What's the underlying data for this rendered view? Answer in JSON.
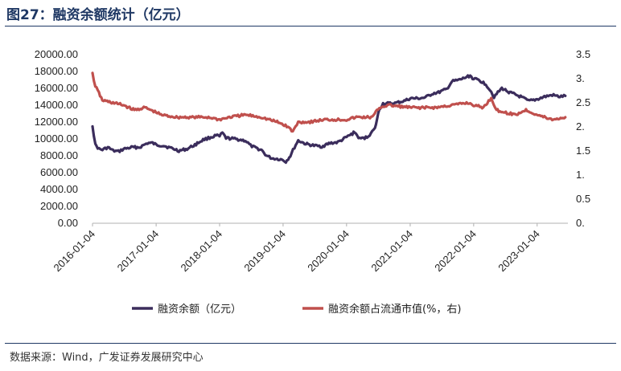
{
  "figure": {
    "title": "图27：融资余额统计（亿元）",
    "source": "数据来源：Wind，广发证券发展研究中心"
  },
  "chart_data": {
    "type": "line",
    "x_ticks": [
      "2016-01-04",
      "2017-01-04",
      "2018-01-04",
      "2019-01-04",
      "2020-01-04",
      "2021-01-04",
      "2022-01-04",
      "2023-01-04"
    ],
    "y_left": {
      "ticks": [
        "20000.00",
        "18000.00",
        "16000.00",
        "14000.00",
        "12000.00",
        "10000.00",
        "8000.00",
        "6000.00",
        "4000.00",
        "2000.00",
        "0.00"
      ],
      "range": [
        0,
        20000
      ]
    },
    "y_right": {
      "ticks": [
        "3.5",
        "3.",
        "2.5",
        "2.",
        "1.5",
        "1.",
        "0.5",
        "0."
      ],
      "range": [
        0,
        3.5
      ]
    },
    "legend_position": "bottom",
    "grid": false,
    "series": [
      {
        "name": "融资余额（亿元）",
        "axis": "left",
        "color": "#3b2d5c",
        "points": [
          [
            "2016-01-04",
            11600
          ],
          [
            "2016-01-20",
            9300
          ],
          [
            "2016-02-10",
            8800
          ],
          [
            "2016-03-01",
            8700
          ],
          [
            "2016-04-01",
            9000
          ],
          [
            "2016-05-01",
            8600
          ],
          [
            "2016-06-01",
            8500
          ],
          [
            "2016-07-01",
            8800
          ],
          [
            "2016-08-15",
            9000
          ],
          [
            "2016-10-01",
            9000
          ],
          [
            "2016-11-15",
            9500
          ],
          [
            "2016-12-15",
            9500
          ],
          [
            "2017-01-04",
            9300
          ],
          [
            "2017-02-15",
            9200
          ],
          [
            "2017-04-01",
            8900
          ],
          [
            "2017-05-15",
            8600
          ],
          [
            "2017-07-01",
            8800
          ],
          [
            "2017-08-15",
            9300
          ],
          [
            "2017-10-01",
            9900
          ],
          [
            "2017-11-15",
            10200
          ],
          [
            "2017-12-15",
            10400
          ],
          [
            "2018-01-04",
            10300
          ],
          [
            "2018-01-20",
            10700
          ],
          [
            "2018-02-10",
            10100
          ],
          [
            "2018-04-01",
            10000
          ],
          [
            "2018-06-01",
            9800
          ],
          [
            "2018-07-01",
            9200
          ],
          [
            "2018-08-01",
            8900
          ],
          [
            "2018-09-01",
            8700
          ],
          [
            "2018-10-01",
            8000
          ],
          [
            "2018-11-01",
            7700
          ],
          [
            "2018-12-15",
            7600
          ],
          [
            "2019-01-04",
            7500
          ],
          [
            "2019-01-20",
            7300
          ],
          [
            "2019-02-15",
            8000
          ],
          [
            "2019-03-10",
            9000
          ],
          [
            "2019-04-01",
            9800
          ],
          [
            "2019-05-15",
            9400
          ],
          [
            "2019-07-01",
            9200
          ],
          [
            "2019-08-15",
            9100
          ],
          [
            "2019-10-01",
            9500
          ],
          [
            "2019-11-15",
            9600
          ],
          [
            "2020-01-04",
            10200
          ],
          [
            "2020-02-20",
            10800
          ],
          [
            "2020-03-20",
            10000
          ],
          [
            "2020-05-01",
            10200
          ],
          [
            "2020-06-15",
            11200
          ],
          [
            "2020-07-10",
            13500
          ],
          [
            "2020-08-01",
            14200
          ],
          [
            "2020-10-01",
            14200
          ],
          [
            "2020-12-01",
            14500
          ],
          [
            "2021-01-04",
            14800
          ],
          [
            "2021-02-15",
            14800
          ],
          [
            "2021-04-01",
            14900
          ],
          [
            "2021-05-15",
            15400
          ],
          [
            "2021-06-15",
            15500
          ],
          [
            "2021-08-01",
            15900
          ],
          [
            "2021-09-01",
            16800
          ],
          [
            "2021-10-15",
            17000
          ],
          [
            "2021-12-15",
            17500
          ],
          [
            "2022-01-04",
            17100
          ],
          [
            "2022-02-01",
            17000
          ],
          [
            "2022-03-15",
            16500
          ],
          [
            "2022-04-15",
            15600
          ],
          [
            "2022-05-01",
            15000
          ],
          [
            "2022-06-15",
            16000
          ],
          [
            "2022-08-01",
            15500
          ],
          [
            "2022-10-01",
            15000
          ],
          [
            "2022-11-15",
            14500
          ],
          [
            "2022-12-15",
            14600
          ],
          [
            "2023-01-04",
            14700
          ],
          [
            "2023-02-15",
            15000
          ],
          [
            "2023-04-01",
            15200
          ],
          [
            "2023-05-15",
            15000
          ],
          [
            "2023-06-15",
            15100
          ]
        ]
      },
      {
        "name": "融资余额占流通市值(%，右)",
        "axis": "right",
        "color": "#c0504d",
        "points": [
          [
            "2016-01-04",
            3.1
          ],
          [
            "2016-01-20",
            2.85
          ],
          [
            "2016-02-10",
            2.7
          ],
          [
            "2016-03-01",
            2.55
          ],
          [
            "2016-05-01",
            2.5
          ],
          [
            "2016-07-01",
            2.45
          ],
          [
            "2016-09-01",
            2.35
          ],
          [
            "2016-11-01",
            2.4
          ],
          [
            "2017-01-04",
            2.3
          ],
          [
            "2017-02-01",
            2.25
          ],
          [
            "2017-05-01",
            2.2
          ],
          [
            "2017-08-01",
            2.2
          ],
          [
            "2017-11-01",
            2.2
          ],
          [
            "2018-01-04",
            2.15
          ],
          [
            "2018-03-01",
            2.2
          ],
          [
            "2018-06-01",
            2.25
          ],
          [
            "2018-09-01",
            2.2
          ],
          [
            "2018-12-01",
            2.1
          ],
          [
            "2019-01-04",
            2.05
          ],
          [
            "2019-02-01",
            2.0
          ],
          [
            "2019-03-01",
            1.9
          ],
          [
            "2019-04-01",
            2.1
          ],
          [
            "2019-06-01",
            2.1
          ],
          [
            "2019-09-01",
            2.15
          ],
          [
            "2019-12-01",
            2.15
          ],
          [
            "2020-01-04",
            2.15
          ],
          [
            "2020-03-01",
            2.2
          ],
          [
            "2020-06-01",
            2.2
          ],
          [
            "2020-07-10",
            2.4
          ],
          [
            "2020-09-01",
            2.45
          ],
          [
            "2021-01-04",
            2.4
          ],
          [
            "2021-03-01",
            2.4
          ],
          [
            "2021-06-01",
            2.4
          ],
          [
            "2021-09-01",
            2.45
          ],
          [
            "2021-12-01",
            2.5
          ],
          [
            "2022-01-04",
            2.45
          ],
          [
            "2022-03-01",
            2.4
          ],
          [
            "2022-04-15",
            2.6
          ],
          [
            "2022-05-15",
            2.35
          ],
          [
            "2022-07-01",
            2.3
          ],
          [
            "2022-09-01",
            2.25
          ],
          [
            "2022-11-01",
            2.35
          ],
          [
            "2023-01-04",
            2.25
          ],
          [
            "2023-02-15",
            2.2
          ],
          [
            "2023-04-01",
            2.15
          ],
          [
            "2023-06-15",
            2.2
          ]
        ]
      }
    ]
  }
}
